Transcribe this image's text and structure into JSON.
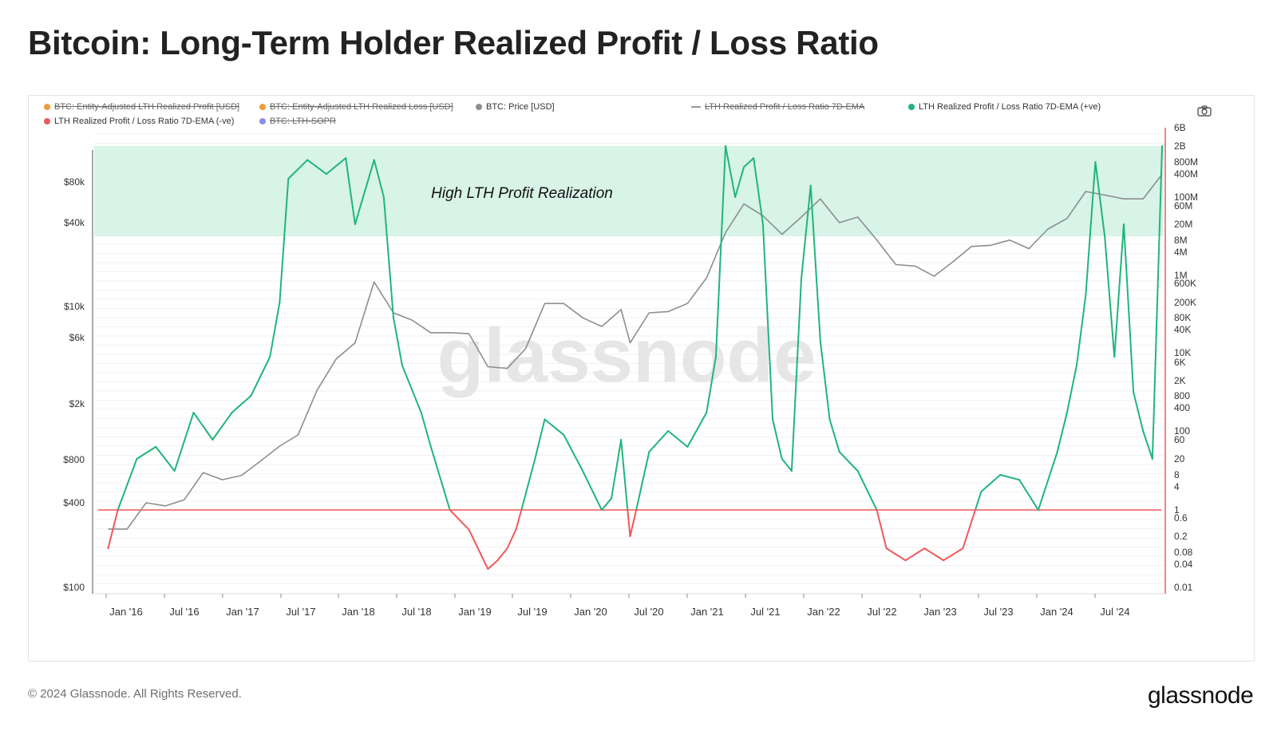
{
  "title": "Bitcoin: Long-Term Holder Realized Profit / Loss Ratio",
  "footer": {
    "copyright": "© 2024 Glassnode. All Rights Reserved.",
    "logo": "glassnode"
  },
  "watermark": "glassnode",
  "icons": {
    "camera": "camera-icon"
  },
  "colors": {
    "positive": "#1fb57a",
    "negative": "#f0585c",
    "price": "#8a8f8f",
    "band": "#d8f3e7",
    "axis_red": "#f0585c"
  },
  "legend": [
    {
      "label": "BTC: Entity-Adjusted LTH Realized Profit [USD]",
      "color": "#f29a3b",
      "enabled": false
    },
    {
      "label": "BTC: Entity-Adjusted LTH Realized Loss [USD]",
      "color": "#f29a3b",
      "enabled": false
    },
    {
      "label": "BTC: Price [USD]",
      "color": "#8a8f8f",
      "enabled": true
    },
    {
      "label": "LTH Realized Profit / Loss Ratio 7D-EMA",
      "color": "#9a9a9a",
      "enabled": false,
      "style": "line"
    },
    {
      "label": "LTH Realized Profit / Loss Ratio 7D-EMA (+ve)",
      "color": "#1fb57a",
      "enabled": true
    },
    {
      "label": "LTH Realized Profit / Loss Ratio 7D-EMA (-ve)",
      "color": "#f0585c",
      "enabled": true
    },
    {
      "label": "BTC: LTH-SOPR",
      "color": "#8c8cf0",
      "enabled": false
    }
  ],
  "chart_data": {
    "type": "line",
    "annotation": "High LTH Profit Realization",
    "band": {
      "ratio_range": [
        2000000000,
        10000000
      ]
    },
    "threshold_ratio": 1,
    "x_ticks": [
      "Jan '16",
      "Jul '16",
      "Jan '17",
      "Jul '17",
      "Jan '18",
      "Jul '18",
      "Jan '19",
      "Jul '19",
      "Jan '20",
      "Jul '20",
      "Jan '21",
      "Jul '21",
      "Jan '22",
      "Jul '22",
      "Jan '23",
      "Jul '23",
      "Jan '24",
      "Jul '24"
    ],
    "x_range": [
      "2015-08-01",
      "2024-11-20"
    ],
    "y_left": {
      "scale": "log",
      "ticks": [
        "$80k",
        "$40k",
        "$10k",
        "$6k",
        "$2k",
        "$800",
        "$400",
        "$100"
      ],
      "tick_values": [
        80000,
        40000,
        10000,
        6000,
        2000,
        800,
        400,
        100
      ]
    },
    "y_right": {
      "scale": "log",
      "ticks": [
        "6B",
        "2B",
        "800M",
        "400M",
        "100M",
        "60M",
        "20M",
        "8M",
        "4M",
        "1M",
        "600K",
        "200K",
        "80K",
        "40K",
        "10K",
        "6K",
        "2K",
        "800",
        "400",
        "100",
        "60",
        "20",
        "8",
        "4",
        "1",
        "0.6",
        "0.2",
        "0.08",
        "0.04",
        "0.01"
      ],
      "tick_values": [
        6000000000.0,
        2000000000.0,
        800000000.0,
        400000000.0,
        100000000.0,
        60000000.0,
        20000000.0,
        8000000.0,
        4000000.0,
        1000000.0,
        600000.0,
        200000.0,
        80000.0,
        40000.0,
        10000.0,
        6000.0,
        2000.0,
        800,
        400,
        100,
        60,
        20,
        8,
        4,
        1,
        0.6,
        0.2,
        0.08,
        0.04,
        0.01
      ]
    },
    "series": [
      {
        "name": "BTC: Price [USD]",
        "axis": "left",
        "x": [
          "2015-08",
          "2015-10",
          "2015-12",
          "2016-02",
          "2016-04",
          "2016-06",
          "2016-08",
          "2016-10",
          "2016-12",
          "2017-02",
          "2017-04",
          "2017-06",
          "2017-08",
          "2017-10",
          "2017-12",
          "2018-02",
          "2018-04",
          "2018-06",
          "2018-08",
          "2018-10",
          "2018-12",
          "2019-02",
          "2019-04",
          "2019-06",
          "2019-08",
          "2019-10",
          "2019-12",
          "2020-02",
          "2020-03",
          "2020-05",
          "2020-07",
          "2020-09",
          "2020-11",
          "2021-01",
          "2021-03",
          "2021-05",
          "2021-07",
          "2021-09",
          "2021-11",
          "2022-01",
          "2022-03",
          "2022-05",
          "2022-07",
          "2022-09",
          "2022-11",
          "2023-01",
          "2023-03",
          "2023-05",
          "2023-07",
          "2023-09",
          "2023-11",
          "2024-01",
          "2024-03",
          "2024-05",
          "2024-07",
          "2024-09",
          "2024-11"
        ],
        "y": [
          260,
          260,
          400,
          380,
          420,
          650,
          580,
          620,
          780,
          1000,
          1200,
          2500,
          4200,
          5500,
          15000,
          9000,
          8000,
          6500,
          6500,
          6400,
          3700,
          3600,
          5000,
          10500,
          10500,
          8300,
          7200,
          9500,
          5500,
          9000,
          9200,
          10500,
          16000,
          34000,
          55000,
          45000,
          33000,
          44000,
          60000,
          40000,
          44000,
          30000,
          20000,
          19500,
          16500,
          21000,
          27000,
          27500,
          30000,
          26000,
          36000,
          43000,
          68000,
          64000,
          60000,
          60000,
          91000
        ]
      },
      {
        "name": "LTH Realized Profit / Loss Ratio 7D-EMA",
        "axis": "right",
        "x": [
          "2015-08",
          "2015-09",
          "2015-11",
          "2016-01",
          "2016-03",
          "2016-05",
          "2016-07",
          "2016-09",
          "2016-11",
          "2017-01",
          "2017-02",
          "2017-03",
          "2017-05",
          "2017-07",
          "2017-09",
          "2017-10",
          "2017-12",
          "2018-01",
          "2018-02",
          "2018-03",
          "2018-05",
          "2018-06",
          "2018-08",
          "2018-10",
          "2018-12",
          "2019-01",
          "2019-02",
          "2019-03",
          "2019-05",
          "2019-06",
          "2019-08",
          "2019-10",
          "2019-12",
          "2020-01",
          "2020-02",
          "2020-03",
          "2020-05",
          "2020-07",
          "2020-09",
          "2020-11",
          "2020-12",
          "2021-01",
          "2021-02",
          "2021-03",
          "2021-04",
          "2021-05",
          "2021-06",
          "2021-07",
          "2021-08",
          "2021-09",
          "2021-10",
          "2021-11",
          "2021-12",
          "2022-01",
          "2022-03",
          "2022-05",
          "2022-06",
          "2022-08",
          "2022-10",
          "2022-12",
          "2023-02",
          "2023-04",
          "2023-06",
          "2023-08",
          "2023-10",
          "2023-12",
          "2024-01",
          "2024-02",
          "2024-03",
          "2024-04",
          "2024-05",
          "2024-06",
          "2024-07",
          "2024-08",
          "2024-09",
          "2024-10",
          "2024-11"
        ],
        "y": [
          0.1,
          1,
          20,
          40,
          10,
          300,
          60,
          300,
          800,
          8000,
          200000,
          300000000,
          900000000,
          400000000,
          1000000000,
          20000000,
          900000000,
          100000000,
          80000,
          5000,
          300,
          40,
          1,
          0.3,
          0.03,
          0.05,
          0.1,
          0.3,
          20,
          200,
          80,
          10,
          1,
          2,
          60,
          0.2,
          30,
          100,
          40,
          300,
          8000,
          2000000000,
          100000000,
          600000000,
          1000000000,
          20000000,
          200,
          20,
          10,
          800000,
          200000000,
          20000,
          200,
          30,
          10,
          1,
          0.1,
          0.05,
          0.1,
          0.05,
          0.1,
          3,
          8,
          6,
          1,
          30,
          300,
          5000,
          300000,
          800000000,
          10000000,
          8000,
          20000000,
          1000,
          100,
          20,
          2000000000
        ]
      }
    ]
  }
}
